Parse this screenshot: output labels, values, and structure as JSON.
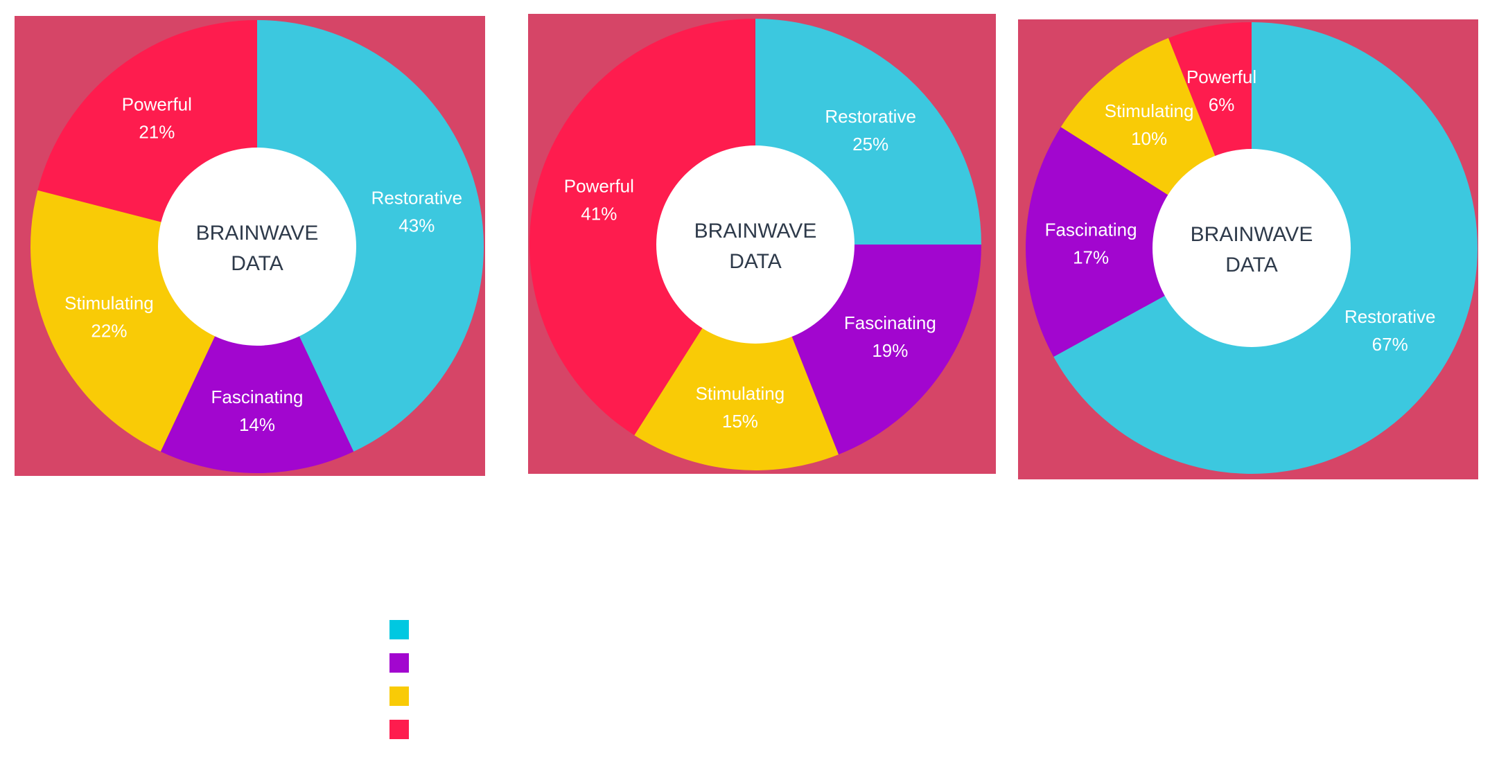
{
  "colors": {
    "panel_background": "#d64567",
    "center_fill": "#ffffff",
    "center_text": "#2e3a4a",
    "label_text": "#ffffff"
  },
  "chart_data": [
    {
      "type": "pie",
      "donut": true,
      "center_label": [
        "BRAINWAVE",
        "DATA"
      ],
      "categories": [
        "Restorative",
        "Fascinating",
        "Stimulating",
        "Powerful"
      ],
      "values": [
        43,
        14,
        22,
        21
      ],
      "value_labels": [
        "43%",
        "14%",
        "22%",
        "21%"
      ],
      "colors": [
        "#3cc8df",
        "#a206cf",
        "#f9cb06",
        "#fe1c4e"
      ],
      "start": "12 o'clock",
      "direction": "clockwise"
    },
    {
      "type": "pie",
      "donut": true,
      "center_label": [
        "BRAINWAVE",
        "DATA"
      ],
      "categories": [
        "Restorative",
        "Fascinating",
        "Stimulating",
        "Powerful"
      ],
      "values": [
        25,
        19,
        15,
        41
      ],
      "value_labels": [
        "25%",
        "19%",
        "15%",
        "41%"
      ],
      "colors": [
        "#3cc8df",
        "#a206cf",
        "#f9cb06",
        "#fe1c4e"
      ],
      "start": "12 o'clock",
      "direction": "clockwise"
    },
    {
      "type": "pie",
      "donut": true,
      "center_label": [
        "BRAINWAVE",
        "DATA"
      ],
      "categories": [
        "Restorative",
        "Fascinating",
        "Stimulating",
        "Powerful"
      ],
      "values": [
        67,
        17,
        10,
        6
      ],
      "value_labels": [
        "67%",
        "17%",
        "10%",
        "6%"
      ],
      "colors": [
        "#3cc8df",
        "#a206cf",
        "#f9cb06",
        "#fe1c4e"
      ],
      "start": "12 o'clock",
      "direction": "clockwise"
    }
  ],
  "legend": {
    "swatches": [
      "#00c8e1",
      "#a206cf",
      "#f9cb06",
      "#fe1c4e"
    ]
  }
}
